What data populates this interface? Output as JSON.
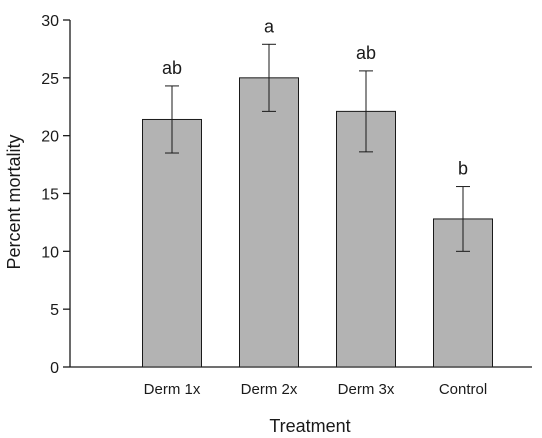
{
  "chart_data": {
    "type": "bar",
    "categories": [
      "Derm 1x",
      "Derm 2x",
      "Derm 3x",
      "Control"
    ],
    "values": [
      21.4,
      25.0,
      22.1,
      12.8
    ],
    "error": [
      2.9,
      2.9,
      3.5,
      2.8
    ],
    "significance": [
      "ab",
      "a",
      "ab",
      "b"
    ],
    "xlabel": "Treatment",
    "ylabel": "Percent mortality",
    "ylim": [
      0,
      30
    ],
    "yticks": [
      0,
      5,
      10,
      15,
      20,
      25,
      30
    ],
    "grid": false,
    "bar_color": "#b3b3b3",
    "bar_edge_color": "#1a1a1a"
  }
}
